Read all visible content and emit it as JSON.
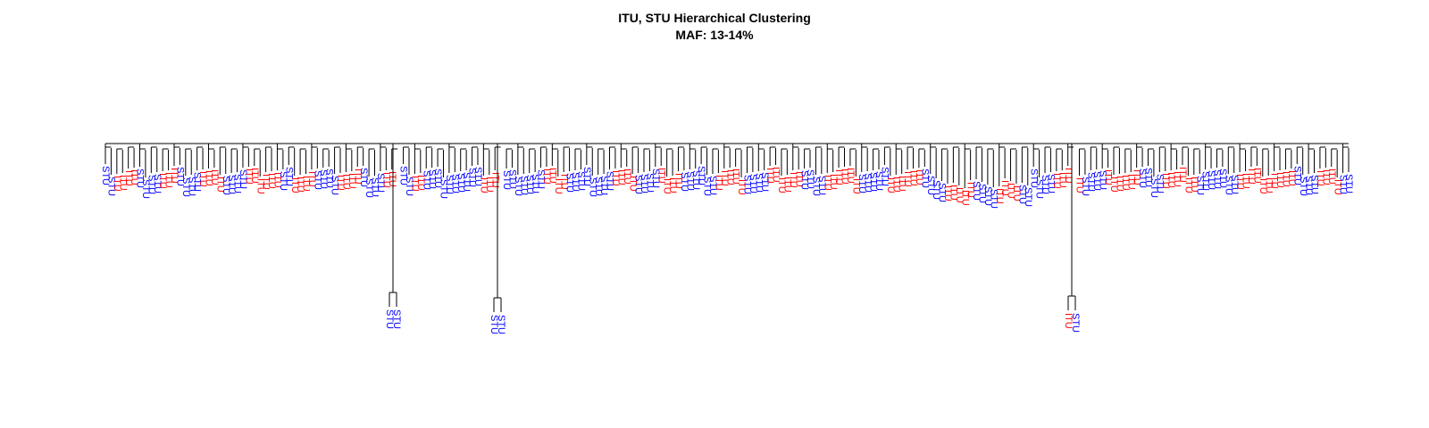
{
  "title": "ITU, STU Hierarchical Clustering",
  "subtitle": "MAF: 13-14%",
  "labels": {
    "itu": "ITU",
    "stu": "STU"
  },
  "colors": {
    "itu": "#ff0000",
    "stu": "#0000ff",
    "branch": "#000000"
  },
  "leaf_pattern": "SSIIIISSSSIIISSSSIIIISSSSIIIIIISSIIIISSSSIIIISSSSIIISSIISSSSSSSSSSIIIISSSSSSSIIIISSSSSSSSIIIISSSSIIIISSSSSSIIIIISSSSIIIIIISSSSIIIIIISSSSSIIIIIISSSSIIIIISSSSIIIISSSSSSIIIIISSSSIIIIIISSSSIIIIIISSSSSSSIIIIIIIIIISSSSIIIISS",
  "outliers": [
    {
      "labels": [
        "STU",
        "STU"
      ]
    },
    {
      "labels": [
        "STU",
        "STU"
      ]
    },
    {
      "labels": [
        "ITU",
        "STU"
      ]
    }
  ]
}
